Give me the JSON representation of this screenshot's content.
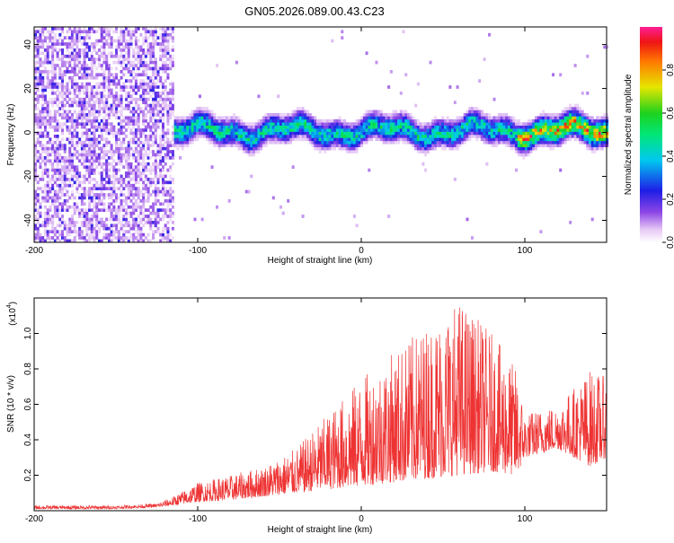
{
  "title": "GN05.2026.089.00.43.C23",
  "chart_data": [
    {
      "type": "heatmap",
      "name": "spectrogram",
      "xlabel": "Height of straight line (km)",
      "ylabel": "Frequency (Hz)",
      "xlim": [
        -200,
        150
      ],
      "ylim": [
        -50,
        48
      ],
      "xticks": [
        -200,
        -100,
        0,
        100
      ],
      "xtick_labels": [
        "-200",
        "-100",
        "0",
        "100"
      ],
      "yticks": [
        -40,
        -20,
        0,
        20,
        40
      ],
      "ytick_labels": [
        "-40",
        "-20",
        "0",
        "20",
        "40"
      ],
      "colorbar": {
        "label": "Normalized spectral amplitude",
        "range": [
          0,
          1
        ],
        "ticks": [
          0,
          0.2,
          0.4,
          0.6,
          0.8
        ],
        "tick_labels": [
          "0.0",
          "0.2",
          "0.4",
          "0.6",
          "0.8"
        ]
      },
      "regions": [
        {
          "description": "broadband noise",
          "x_range": [
            -200,
            -115
          ],
          "freq_range": [
            -50,
            48
          ],
          "amplitude": 0.15
        },
        {
          "description": "signal band",
          "x_range": [
            -115,
            150
          ],
          "center_freq": 0,
          "half_width_hz": 6,
          "peak_amplitude": 0.85
        }
      ]
    },
    {
      "type": "line",
      "name": "snr",
      "xlabel": "Height of straight line (km)",
      "ylabel": "SNR (10 * v/v)",
      "scale_label": "(x10",
      "scale_exp": "4",
      "scale_close": ")",
      "xlim": [
        -200,
        150
      ],
      "ylim": [
        0,
        1.2
      ],
      "xticks": [
        -200,
        -100,
        0,
        100
      ],
      "xtick_labels": [
        "-200",
        "-100",
        "0",
        "100"
      ],
      "yticks": [
        0.2,
        0.4,
        0.6,
        0.8,
        1.0
      ],
      "ytick_labels": [
        "0.2",
        "0.4",
        "0.6",
        "0.8",
        "1.0"
      ],
      "color": "#ee3333",
      "envelope": {
        "x": [
          -200,
          -150,
          -125,
          -115,
          -100,
          -80,
          -60,
          -40,
          -20,
          0,
          20,
          40,
          60,
          80,
          95,
          100,
          120,
          140,
          150
        ],
        "low": [
          0.01,
          0.01,
          0.02,
          0.03,
          0.05,
          0.06,
          0.08,
          0.1,
          0.12,
          0.14,
          0.16,
          0.18,
          0.2,
          0.22,
          0.2,
          0.3,
          0.35,
          0.25,
          0.3
        ],
        "high": [
          0.03,
          0.03,
          0.04,
          0.08,
          0.16,
          0.2,
          0.25,
          0.35,
          0.55,
          0.75,
          0.9,
          1.05,
          1.2,
          1.0,
          0.8,
          0.55,
          0.6,
          0.8,
          0.75
        ]
      }
    }
  ]
}
